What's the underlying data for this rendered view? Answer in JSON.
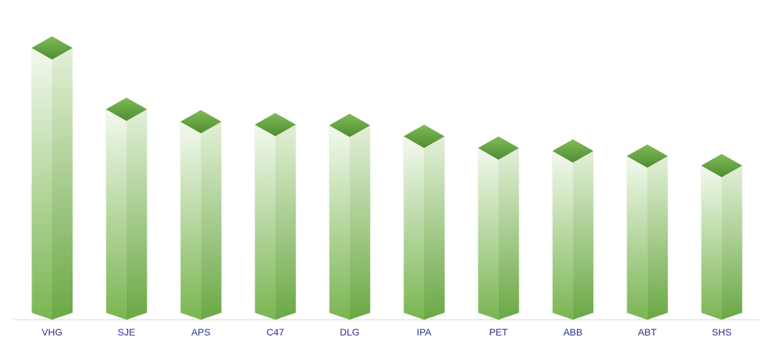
{
  "chart_data": {
    "type": "bar",
    "title": "",
    "xlabel": "",
    "ylabel": "",
    "categories": [
      "VHG",
      "SJE",
      "APS",
      "C47",
      "DLG",
      "IPA",
      "PET",
      "ABB",
      "ABT",
      "SHS"
    ],
    "values": [
      356,
      272,
      255,
      251,
      250,
      235,
      219,
      215,
      208,
      195
    ],
    "ylim": [
      0,
      400
    ],
    "grid": false,
    "legend": "none",
    "colors": {
      "top_face": "#6fab48",
      "top_face_dark": "#4e8d32",
      "front_light": "#f4f9ef",
      "front_dark": "#7ab552",
      "side_light": "#e3f0d8",
      "side_dark": "#6aa844",
      "axis_line": "#d6d6d6",
      "tick_label": "#2b2f8f"
    }
  }
}
